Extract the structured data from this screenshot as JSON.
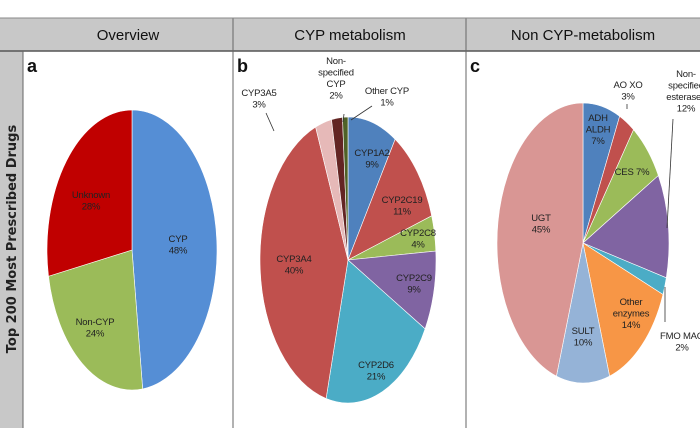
{
  "row_label": "Top 200 Most Prescribed Drugs",
  "columns": [
    "Overview",
    "CYP metabolism",
    "Non CYP-metabolism"
  ],
  "chart_data": [
    {
      "type": "pie",
      "panel": "a",
      "title": "Overview",
      "start": "top",
      "direction": "clockwise",
      "slices": [
        {
          "label": "CYP",
          "value": 48,
          "pct": "48%",
          "color": "#558ed5"
        },
        {
          "label": "Non-CYP",
          "value": 24,
          "pct": "24%",
          "color": "#9bbb59"
        },
        {
          "label": "Unknown",
          "value": 28,
          "pct": "28%",
          "color": "#c00000"
        }
      ]
    },
    {
      "type": "pie",
      "panel": "b",
      "title": "CYP metabolism",
      "start": "top",
      "direction": "clockwise",
      "slices": [
        {
          "label": "CYP1A2",
          "value": 9,
          "pct": "9%",
          "color": "#4f81bd"
        },
        {
          "label": "CYP2C19",
          "value": 11,
          "pct": "11%",
          "color": "#c0504d"
        },
        {
          "label": "CYP2C8",
          "value": 4,
          "pct": "4%",
          "color": "#9bbb59"
        },
        {
          "label": "CYP2C9",
          "value": 9,
          "pct": "9%",
          "color": "#8064a2"
        },
        {
          "label": "CYP2D6",
          "value": 21,
          "pct": "21%",
          "color": "#4bacc6"
        },
        {
          "label": "CYP3A4",
          "value": 40,
          "pct": "40%",
          "color": "#c0504d"
        },
        {
          "label": "CYP3A5",
          "value": 3,
          "pct": "3%",
          "color": "#e6b9b8"
        },
        {
          "label": "Non-specified CYP",
          "value": 2,
          "pct": "2%",
          "color": "#632523"
        },
        {
          "label": "Other CYP",
          "value": 1,
          "pct": "1%",
          "color": "#4f6228"
        }
      ]
    },
    {
      "type": "pie",
      "panel": "c",
      "title": "Non CYP-metabolism",
      "start": "top",
      "direction": "clockwise",
      "slices": [
        {
          "label": "ADH ALDH",
          "value": 7,
          "pct": "7%",
          "color": "#4f81bd"
        },
        {
          "label": "AO XO",
          "value": 3,
          "pct": "3%",
          "color": "#c0504d"
        },
        {
          "label": "CES",
          "value": 7,
          "pct": "7%",
          "color": "#9bbb59"
        },
        {
          "label": "Non-specified esterases",
          "value": 12,
          "pct": "12%",
          "color": "#8064a2"
        },
        {
          "label": "FMO MAO",
          "value": 2,
          "pct": "2%",
          "color": "#4bacc6"
        },
        {
          "label": "Other enzymes",
          "value": 14,
          "pct": "14%",
          "color": "#f79646"
        },
        {
          "label": "SULT",
          "value": 10,
          "pct": "10%",
          "color": "#95b3d7"
        },
        {
          "label": "UGT",
          "value": 45,
          "pct": "45%",
          "color": "#d99694"
        }
      ]
    }
  ]
}
